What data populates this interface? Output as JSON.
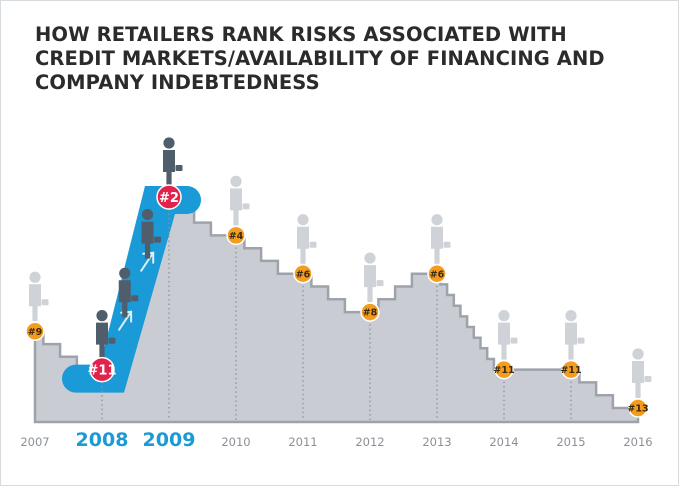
{
  "title_lines": [
    "HOW RETAILERS RANK RISKS ASSOCIATED WITH",
    "CREDIT MARKETS/AVAILABILITY OF FINANCING AND",
    "COMPANY INDEBTEDNESS"
  ],
  "colors": {
    "title": "#2b2b2b",
    "area_fill": "#c9ccd3",
    "area_stroke": "#9ea3ab",
    "highlight": "#1a9ad6",
    "rank_orange": "#f39c1e",
    "rank_red": "#e1234b",
    "person_dark": "#4f5e6a",
    "person_light": "#cfd2d6",
    "year_grey": "#8a9096"
  },
  "chart_data": {
    "type": "area",
    "title": "HOW RETAILERS RANK RISKS ASSOCIATED WITH CREDIT MARKETS/AVAILABILITY OF FINANCING AND COMPANY INDEBTEDNESS",
    "xlabel": "",
    "ylabel": "",
    "x": [
      "2007",
      "2008",
      "2009",
      "2010",
      "2011",
      "2012",
      "2013",
      "2014",
      "2015",
      "2016"
    ],
    "values": [
      9,
      11,
      2,
      4,
      6,
      8,
      6,
      11,
      11,
      13
    ],
    "labels": [
      "#9",
      "#11",
      "#2",
      "#4",
      "#6",
      "#8",
      "#6",
      "#11",
      "#11",
      "#13"
    ],
    "highlighted": [
      "2008",
      "2009"
    ],
    "y_inverted": true,
    "grid": false,
    "legend": "none"
  }
}
